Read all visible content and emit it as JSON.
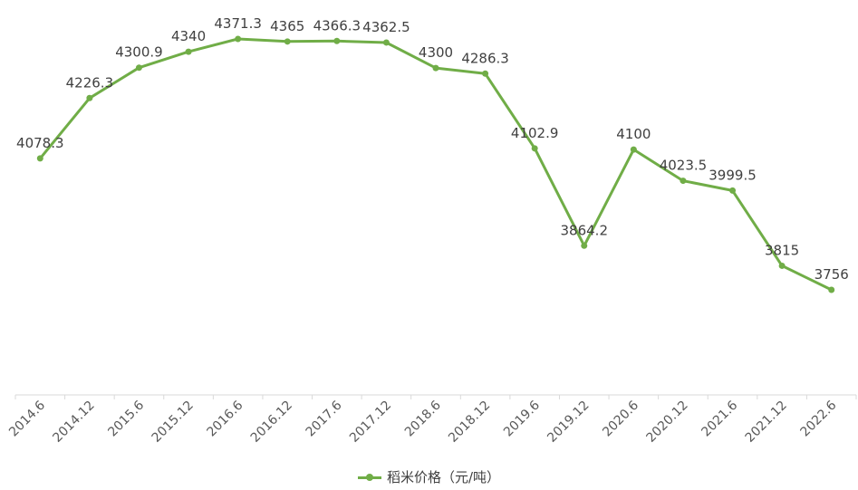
{
  "chart_data": {
    "type": "line",
    "categories": [
      "2014.6",
      "2014.12",
      "2015.6",
      "2015.12",
      "2016.6",
      "2016.12",
      "2017.6",
      "2017.12",
      "2018.6",
      "2018.12",
      "2019.6",
      "2019.12",
      "2020.6",
      "2020.12",
      "2021.6",
      "2021.12",
      "2022.6"
    ],
    "series": [
      {
        "name": "稻米价格（元/吨）",
        "values": [
          4078.3,
          4226.3,
          4300.9,
          4340,
          4371.3,
          4365,
          4366.3,
          4362.5,
          4300,
          4286.3,
          4102.9,
          3864.2,
          4100,
          4023.5,
          3999.5,
          3815,
          3756
        ],
        "labels": [
          "4078.3",
          "4226.3",
          "4300.9",
          "4340",
          "4371.3",
          "4365",
          "4366.3",
          "4362.5",
          "4300",
          "4286.3",
          "4102.9",
          "3864.2",
          "4100",
          "4023.5",
          "3999.5",
          "3815",
          "3756"
        ],
        "color": "#70AD47"
      }
    ],
    "title": "",
    "xlabel": "",
    "ylabel": "",
    "ylim": [
      3500,
      4400
    ],
    "grid": false,
    "legend_position": "bottom"
  },
  "legend": {
    "label": "稻米价格（元/吨）"
  }
}
